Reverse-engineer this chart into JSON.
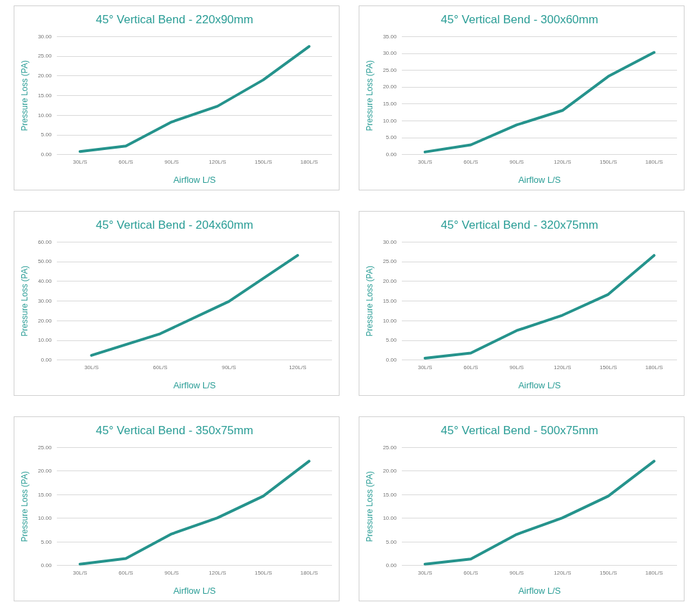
{
  "chart_data": [
    {
      "type": "line",
      "title": "45° Vertical Bend - 220x90mm",
      "xlabel": "Airflow L/S",
      "ylabel": "Pressure Loss (PA)",
      "categories": [
        "30L/S",
        "60L/S",
        "90L/S",
        "120L/S",
        "150L/S",
        "180L/S"
      ],
      "series": [
        {
          "color": "#25938c",
          "values": [
            0.8,
            2.2,
            8.3,
            12.3,
            19.0,
            27.5
          ]
        }
      ],
      "ylim": [
        0,
        30
      ],
      "yticks": [
        {
          "value": 0,
          "label": "0.00"
        },
        {
          "value": 5,
          "label": "5.00"
        },
        {
          "value": 10,
          "label": "10.00"
        },
        {
          "value": 15,
          "label": "15.00"
        },
        {
          "value": 20,
          "label": "20.00"
        },
        {
          "value": 25,
          "label": "25.00"
        },
        {
          "value": 30,
          "label": "30.00"
        }
      ],
      "grid": "y",
      "legend": false,
      "marker": "none",
      "line_style": "solid"
    },
    {
      "type": "line",
      "title": "45° Vertical Bend - 300x60mm",
      "xlabel": "Airflow L/S",
      "ylabel": "Pressure Loss (PA)",
      "categories": [
        "30L/S",
        "60L/S",
        "90L/S",
        "120L/S",
        "150L/S",
        "180L/S"
      ],
      "series": [
        {
          "color": "#25938c",
          "values": [
            0.8,
            2.9,
            8.8,
            13.1,
            23.2,
            30.3
          ]
        }
      ],
      "ylim": [
        0,
        35
      ],
      "yticks": [
        {
          "value": 0,
          "label": "0.00"
        },
        {
          "value": 5,
          "label": "5.00"
        },
        {
          "value": 10,
          "label": "10.00"
        },
        {
          "value": 15,
          "label": "15.00"
        },
        {
          "value": 20,
          "label": "20.00"
        },
        {
          "value": 25,
          "label": "25.00"
        },
        {
          "value": 30,
          "label": "30.00"
        },
        {
          "value": 35,
          "label": "35.00"
        }
      ],
      "grid": "y",
      "legend": false,
      "marker": "none",
      "line_style": "solid"
    },
    {
      "type": "line",
      "title": "45° Vertical Bend - 204x60mm",
      "xlabel": "Airflow L/S",
      "ylabel": "Pressure Loss (PA)",
      "categories": [
        "30L/S",
        "60L/S",
        "90L/S",
        "120L/S"
      ],
      "series": [
        {
          "color": "#25938c",
          "values": [
            2.4,
            13.4,
            29.8,
            53.2
          ]
        }
      ],
      "ylim": [
        0,
        60
      ],
      "yticks": [
        {
          "value": 0,
          "label": "0.00"
        },
        {
          "value": 10,
          "label": "10.00"
        },
        {
          "value": 20,
          "label": "20.00"
        },
        {
          "value": 30,
          "label": "30.00"
        },
        {
          "value": 40,
          "label": "40.00"
        },
        {
          "value": 50,
          "label": "50.00"
        },
        {
          "value": 60,
          "label": "60.00"
        }
      ],
      "grid": "y",
      "legend": false,
      "marker": "none",
      "line_style": "solid"
    },
    {
      "type": "line",
      "title": "45° Vertical Bend - 320x75mm",
      "xlabel": "Airflow L/S",
      "ylabel": "Pressure Loss (PA)",
      "categories": [
        "30L/S",
        "60L/S",
        "90L/S",
        "120L/S",
        "150L/S",
        "180L/S"
      ],
      "series": [
        {
          "color": "#25938c",
          "values": [
            0.5,
            1.8,
            7.5,
            11.4,
            16.7,
            26.6
          ]
        }
      ],
      "ylim": [
        0,
        30
      ],
      "yticks": [
        {
          "value": 0,
          "label": "0.00"
        },
        {
          "value": 5,
          "label": "5.00"
        },
        {
          "value": 10,
          "label": "10.00"
        },
        {
          "value": 15,
          "label": "15.00"
        },
        {
          "value": 20,
          "label": "20.00"
        },
        {
          "value": 25,
          "label": "25.00"
        },
        {
          "value": 30,
          "label": "30.00"
        }
      ],
      "grid": "y",
      "legend": false,
      "marker": "none",
      "line_style": "solid"
    },
    {
      "type": "line",
      "title": "45° Vertical Bend - 350x75mm",
      "xlabel": "Airflow L/S",
      "ylabel": "Pressure Loss (PA)",
      "categories": [
        "30L/S",
        "60L/S",
        "90L/S",
        "120L/S",
        "150L/S",
        "180L/S"
      ],
      "series": [
        {
          "color": "#25938c",
          "values": [
            0.3,
            1.5,
            6.7,
            10.1,
            14.7,
            22.1
          ]
        }
      ],
      "ylim": [
        0,
        25
      ],
      "yticks": [
        {
          "value": 0,
          "label": "0.00"
        },
        {
          "value": 5,
          "label": "5.00"
        },
        {
          "value": 10,
          "label": "10.00"
        },
        {
          "value": 15,
          "label": "15.00"
        },
        {
          "value": 20,
          "label": "20.00"
        },
        {
          "value": 25,
          "label": "25.00"
        }
      ],
      "grid": "y",
      "legend": false,
      "marker": "none",
      "line_style": "solid"
    },
    {
      "type": "line",
      "title": "45° Vertical Bend - 500x75mm",
      "xlabel": "Airflow L/S",
      "ylabel": "Pressure Loss (PA)",
      "categories": [
        "30L/S",
        "60L/S",
        "90L/S",
        "120L/S",
        "150L/S",
        "180L/S"
      ],
      "series": [
        {
          "color": "#25938c",
          "values": [
            0.3,
            1.4,
            6.6,
            10.1,
            14.7,
            22.1
          ]
        }
      ],
      "ylim": [
        0,
        25
      ],
      "yticks": [
        {
          "value": 0,
          "label": "0.00"
        },
        {
          "value": 5,
          "label": "5.00"
        },
        {
          "value": 10,
          "label": "10.00"
        },
        {
          "value": 15,
          "label": "15.00"
        },
        {
          "value": 20,
          "label": "20.00"
        },
        {
          "value": 25,
          "label": "25.00"
        }
      ],
      "grid": "y",
      "legend": false,
      "marker": "none",
      "line_style": "solid"
    }
  ]
}
